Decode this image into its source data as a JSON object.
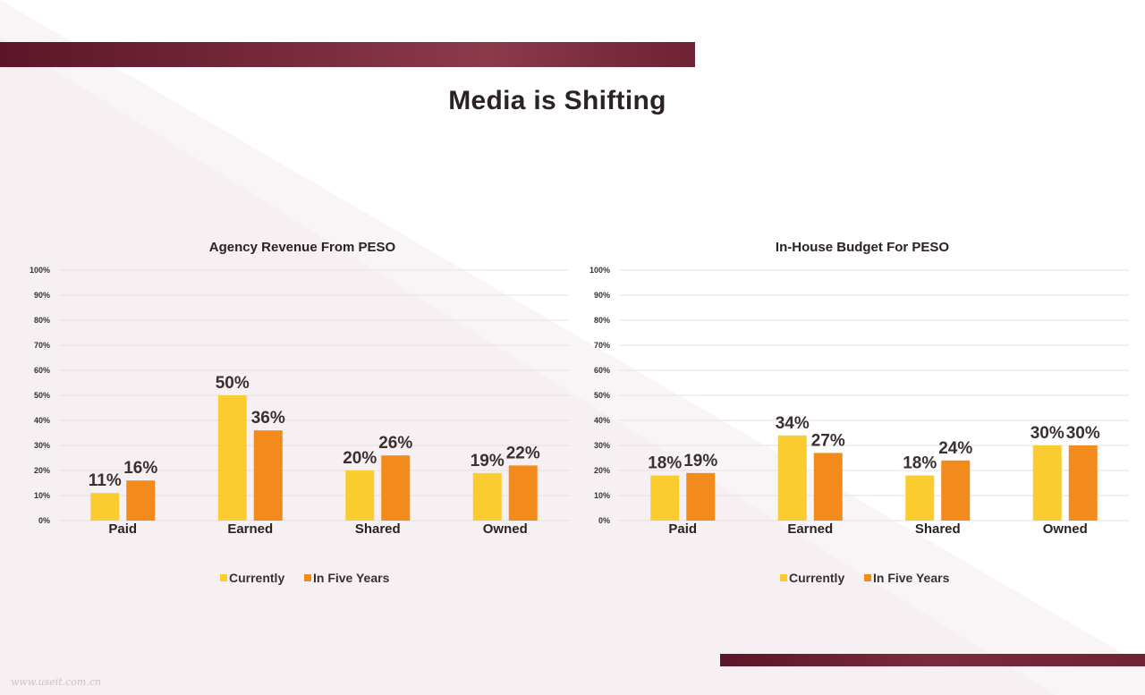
{
  "page": {
    "title": "Media is Shifting",
    "watermark": "www.useit.com.cn",
    "colors": {
      "band": "#7a2c3e",
      "currently": "#fbcc2f",
      "five_years": "#f28a1c"
    }
  },
  "chart_data": [
    {
      "type": "bar",
      "title": "Agency Revenue From PESO",
      "categories": [
        "Paid",
        "Earned",
        "Shared",
        "Owned"
      ],
      "series": [
        {
          "name": "Currently",
          "values": [
            11,
            50,
            20,
            19
          ],
          "color": "#fbcc2f"
        },
        {
          "name": "In Five Years",
          "values": [
            16,
            36,
            26,
            22
          ],
          "color": "#f28a1c"
        }
      ],
      "ylim": [
        0,
        100
      ],
      "yticks": [
        "0%",
        "10%",
        "20%",
        "30%",
        "40%",
        "50%",
        "60%",
        "70%",
        "80%",
        "90%",
        "100%"
      ],
      "data_labels": [
        [
          "11%",
          "50%",
          "20%",
          "19%"
        ],
        [
          "16%",
          "36%",
          "26%",
          "22%"
        ]
      ],
      "grid": true,
      "legend": "bottom"
    },
    {
      "type": "bar",
      "title": "In-House Budget For PESO",
      "categories": [
        "Paid",
        "Earned",
        "Shared",
        "Owned"
      ],
      "series": [
        {
          "name": "Currently",
          "values": [
            18,
            34,
            18,
            30
          ],
          "color": "#fbcc2f"
        },
        {
          "name": "In Five Years",
          "values": [
            19,
            27,
            24,
            30
          ],
          "color": "#f28a1c"
        }
      ],
      "ylim": [
        0,
        100
      ],
      "yticks": [
        "0%",
        "10%",
        "20%",
        "30%",
        "40%",
        "50%",
        "60%",
        "70%",
        "80%",
        "90%",
        "100%"
      ],
      "data_labels": [
        [
          "18%",
          "34%",
          "18%",
          "30%"
        ],
        [
          "19%",
          "27%",
          "24%",
          "30%"
        ]
      ],
      "grid": true,
      "legend": "bottom"
    }
  ]
}
